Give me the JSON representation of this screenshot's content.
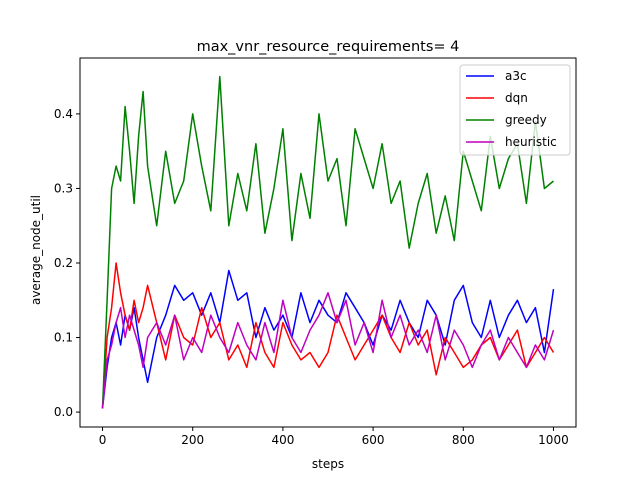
{
  "chart_data": {
    "type": "line",
    "title": "max_vnr_resource_requirements= 4",
    "xlabel": "steps",
    "ylabel": "average_node_util",
    "xlim": [
      -50,
      1050
    ],
    "ylim": [
      -0.02,
      0.475
    ],
    "xticks": [
      0,
      200,
      400,
      600,
      800,
      1000
    ],
    "yticks": [
      0.0,
      0.1,
      0.2,
      0.3,
      0.4
    ],
    "xtick_labels": [
      "0",
      "200",
      "400",
      "600",
      "800",
      "1000"
    ],
    "ytick_labels": [
      "0.0",
      "0.1",
      "0.2",
      "0.3",
      "0.4"
    ],
    "grid": false,
    "legend_position": "top-right",
    "x": [
      0,
      10,
      20,
      30,
      40,
      50,
      60,
      70,
      80,
      90,
      100,
      120,
      140,
      160,
      180,
      200,
      220,
      240,
      260,
      280,
      300,
      320,
      340,
      360,
      380,
      400,
      420,
      440,
      460,
      480,
      500,
      520,
      540,
      560,
      580,
      600,
      620,
      640,
      660,
      680,
      700,
      720,
      740,
      760,
      780,
      800,
      820,
      840,
      860,
      880,
      900,
      920,
      940,
      960,
      980,
      1000
    ],
    "series": [
      {
        "name": "a3c",
        "color": "#0000ff",
        "values": [
          0.005,
          0.06,
          0.1,
          0.12,
          0.09,
          0.13,
          0.11,
          0.14,
          0.1,
          0.07,
          0.04,
          0.1,
          0.13,
          0.17,
          0.15,
          0.16,
          0.13,
          0.16,
          0.12,
          0.19,
          0.15,
          0.16,
          0.1,
          0.14,
          0.11,
          0.13,
          0.1,
          0.16,
          0.12,
          0.15,
          0.13,
          0.12,
          0.16,
          0.14,
          0.12,
          0.09,
          0.13,
          0.11,
          0.15,
          0.12,
          0.1,
          0.15,
          0.13,
          0.09,
          0.15,
          0.17,
          0.12,
          0.1,
          0.15,
          0.1,
          0.13,
          0.15,
          0.12,
          0.14,
          0.08,
          0.165
        ]
      },
      {
        "name": "dqn",
        "color": "#ff0000",
        "values": [
          0.005,
          0.1,
          0.14,
          0.2,
          0.16,
          0.13,
          0.11,
          0.15,
          0.12,
          0.14,
          0.17,
          0.12,
          0.07,
          0.13,
          0.1,
          0.09,
          0.14,
          0.1,
          0.12,
          0.07,
          0.09,
          0.06,
          0.12,
          0.08,
          0.06,
          0.12,
          0.09,
          0.07,
          0.08,
          0.06,
          0.08,
          0.13,
          0.1,
          0.07,
          0.09,
          0.11,
          0.13,
          0.1,
          0.08,
          0.12,
          0.09,
          0.11,
          0.05,
          0.1,
          0.08,
          0.06,
          0.07,
          0.09,
          0.1,
          0.07,
          0.09,
          0.11,
          0.06,
          0.08,
          0.1,
          0.08
        ]
      },
      {
        "name": "greedy",
        "color": "#008000",
        "values": [
          0.005,
          0.15,
          0.3,
          0.33,
          0.31,
          0.41,
          0.35,
          0.28,
          0.37,
          0.43,
          0.33,
          0.25,
          0.35,
          0.28,
          0.31,
          0.4,
          0.33,
          0.27,
          0.45,
          0.25,
          0.32,
          0.27,
          0.36,
          0.24,
          0.3,
          0.38,
          0.23,
          0.32,
          0.26,
          0.4,
          0.31,
          0.34,
          0.25,
          0.38,
          0.34,
          0.3,
          0.36,
          0.28,
          0.31,
          0.22,
          0.28,
          0.32,
          0.24,
          0.29,
          0.23,
          0.35,
          0.31,
          0.27,
          0.37,
          0.3,
          0.34,
          0.36,
          0.28,
          0.39,
          0.3,
          0.31
        ]
      },
      {
        "name": "heuristic",
        "color": "#bf00bf",
        "values": [
          0.005,
          0.07,
          0.09,
          0.12,
          0.14,
          0.1,
          0.13,
          0.11,
          0.09,
          0.06,
          0.1,
          0.12,
          0.09,
          0.13,
          0.07,
          0.1,
          0.08,
          0.13,
          0.1,
          0.08,
          0.12,
          0.09,
          0.07,
          0.12,
          0.08,
          0.15,
          0.1,
          0.08,
          0.11,
          0.13,
          0.16,
          0.12,
          0.15,
          0.09,
          0.12,
          0.08,
          0.15,
          0.1,
          0.13,
          0.09,
          0.11,
          0.08,
          0.13,
          0.07,
          0.11,
          0.09,
          0.06,
          0.09,
          0.11,
          0.07,
          0.1,
          0.08,
          0.06,
          0.09,
          0.07,
          0.11
        ]
      }
    ]
  }
}
